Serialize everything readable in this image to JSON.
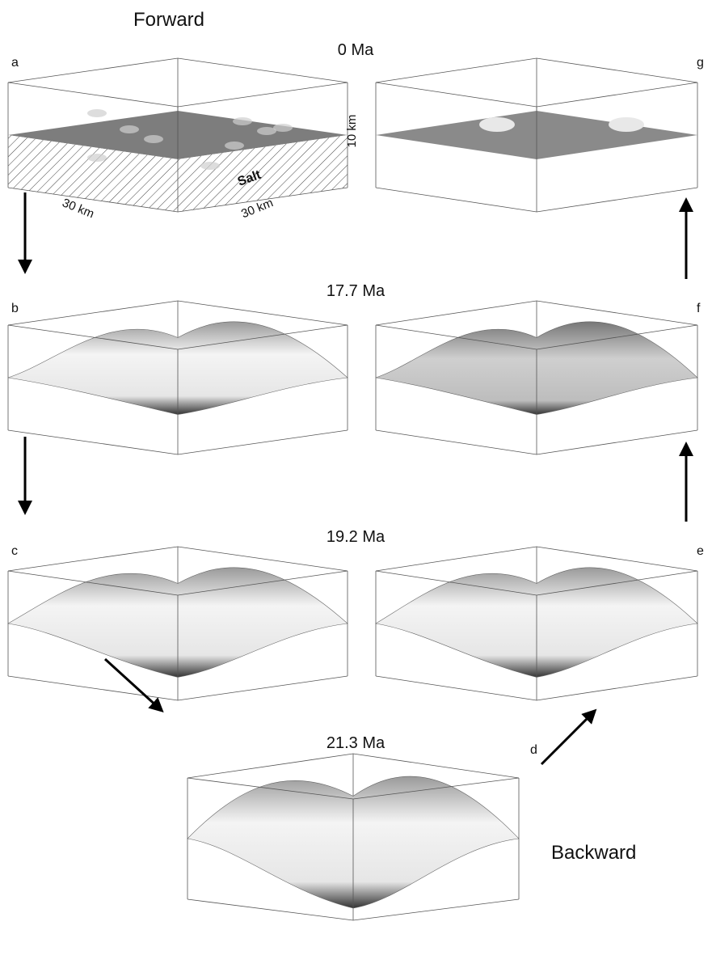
{
  "header": {
    "forward": "Forward",
    "backward": "Backward"
  },
  "times": [
    "0 Ma",
    "17.7 Ma",
    "19.2 Ma",
    "21.3 Ma"
  ],
  "panels": [
    {
      "letter": "a"
    },
    {
      "letter": "b"
    },
    {
      "letter": "c"
    },
    {
      "letter": "d"
    },
    {
      "letter": "e"
    },
    {
      "letter": "f"
    },
    {
      "letter": "g"
    }
  ],
  "annotations": {
    "thickness": "10 km",
    "length_x": "30 km",
    "length_y": "30 km",
    "salt": "Salt"
  }
}
